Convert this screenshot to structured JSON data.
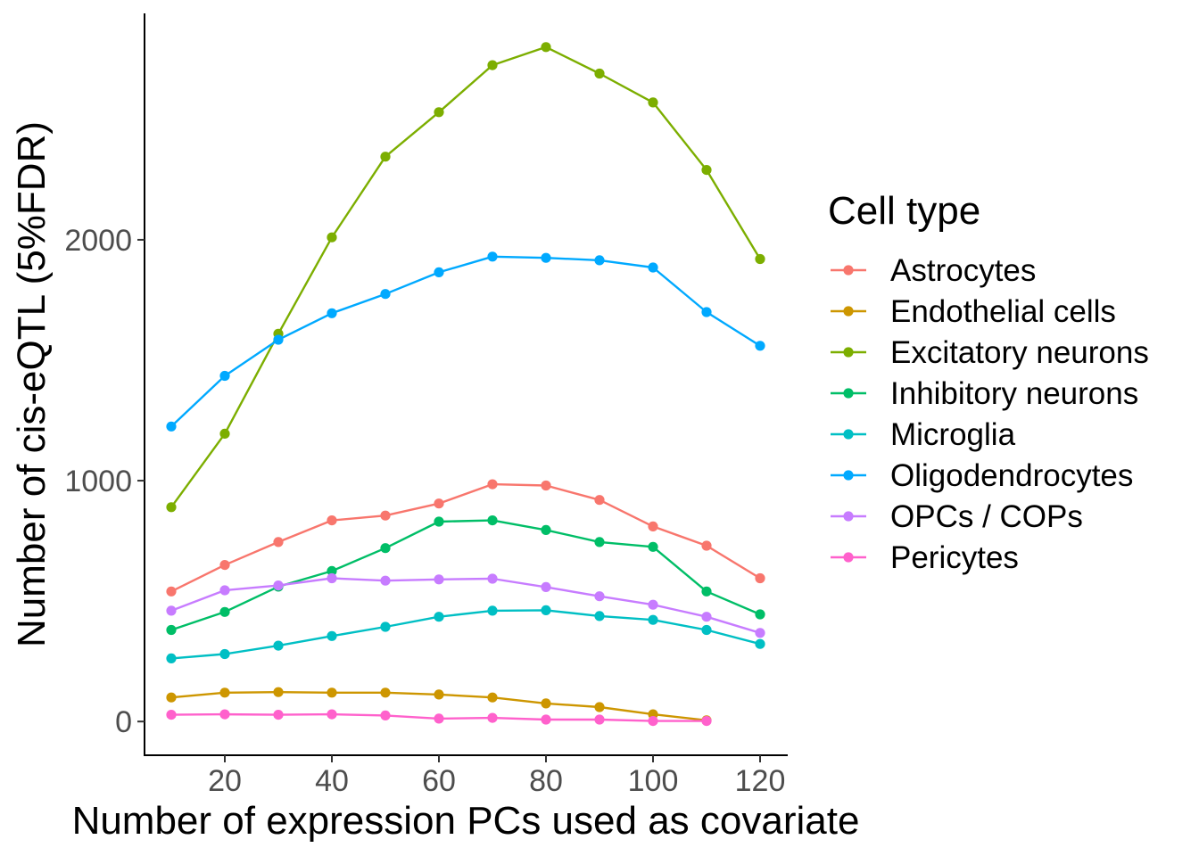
{
  "chart_data": {
    "type": "line",
    "title": "",
    "xlabel": "Number of expression PCs used as covariate",
    "ylabel": "Number of cis-eQTL (5%FDR)",
    "xlim": [
      5,
      125
    ],
    "ylim": [
      -140,
      2940
    ],
    "xticks": [
      20,
      40,
      60,
      80,
      100,
      120
    ],
    "yticks": [
      0,
      1000,
      2000
    ],
    "grid": false,
    "legend": {
      "title": "Cell type",
      "position": "right"
    },
    "x": [
      10,
      20,
      30,
      40,
      50,
      60,
      70,
      80,
      90,
      100,
      110,
      120
    ],
    "series": [
      {
        "name": "Astrocytes",
        "color": "#F8766D",
        "values": [
          540,
          650,
          745,
          835,
          855,
          905,
          985,
          980,
          920,
          810,
          730,
          595
        ]
      },
      {
        "name": "Endothelial cells",
        "color": "#CD9600",
        "values": [
          100,
          120,
          122,
          120,
          120,
          112,
          100,
          75,
          60,
          30,
          5,
          null
        ]
      },
      {
        "name": "Excitatory neurons",
        "color": "#7CAE00",
        "values": [
          890,
          1195,
          1610,
          2010,
          2345,
          2530,
          2725,
          2800,
          2690,
          2570,
          2290,
          1920
        ]
      },
      {
        "name": "Inhibitory neurons",
        "color": "#00BE67",
        "values": [
          380,
          455,
          560,
          625,
          720,
          830,
          835,
          795,
          745,
          725,
          540,
          445
        ]
      },
      {
        "name": "Microglia",
        "color": "#00BFC4",
        "values": [
          262,
          280,
          315,
          355,
          393,
          435,
          460,
          462,
          438,
          422,
          380,
          322
        ]
      },
      {
        "name": "Oligodendrocytes",
        "color": "#00A9FF",
        "values": [
          1225,
          1435,
          1585,
          1695,
          1775,
          1865,
          1930,
          1925,
          1915,
          1885,
          1700,
          1560
        ]
      },
      {
        "name": "OPCs / COPs",
        "color": "#C77CFF",
        "values": [
          460,
          545,
          565,
          595,
          585,
          590,
          593,
          558,
          520,
          485,
          435,
          368
        ]
      },
      {
        "name": "Pericytes",
        "color": "#FF61CC",
        "values": [
          28,
          30,
          28,
          30,
          25,
          12,
          15,
          8,
          8,
          2,
          2,
          null
        ]
      }
    ]
  }
}
